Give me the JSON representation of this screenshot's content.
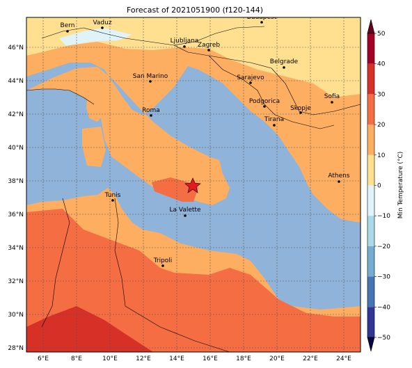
{
  "title": "Forecast of 2021051900 (f120-144)",
  "colorbar": {
    "label": "Min Temperature (°C)",
    "ticks": [
      "50",
      "40",
      "30",
      "20",
      "10",
      "0",
      "−10",
      "−20",
      "−30",
      "−40",
      "−50"
    ],
    "colors": [
      "#a50026",
      "#d73027",
      "#f46d43",
      "#fdae61",
      "#fee090",
      "#e0f3f8",
      "#abd9e9",
      "#74add1",
      "#4575b4",
      "#313695"
    ]
  },
  "axes": {
    "xticks": [
      "6°E",
      "8°E",
      "10°E",
      "12°E",
      "14°E",
      "16°E",
      "18°E",
      "20°E",
      "22°E",
      "24°E"
    ],
    "yticks": [
      "46°N",
      "44°N",
      "42°N",
      "40°N",
      "38°N",
      "36°N",
      "34°N",
      "32°N",
      "30°N",
      "28°N"
    ]
  },
  "cities": [
    {
      "name": "Bern"
    },
    {
      "name": "Vaduz"
    },
    {
      "name": "Budapest"
    },
    {
      "name": "Ljubljana"
    },
    {
      "name": "Zagreb"
    },
    {
      "name": "Belgrade"
    },
    {
      "name": "San Marino"
    },
    {
      "name": "Sarajevo"
    },
    {
      "name": "Sofia"
    },
    {
      "name": "Podgorica"
    },
    {
      "name": "Skopje"
    },
    {
      "name": "Roma"
    },
    {
      "name": "Tirana"
    },
    {
      "name": "Athens"
    },
    {
      "name": "Tunis"
    },
    {
      "name": "La Valette"
    },
    {
      "name": "Tripoli"
    }
  ],
  "marker": {
    "type": "star",
    "color": "#e41a1c"
  }
}
